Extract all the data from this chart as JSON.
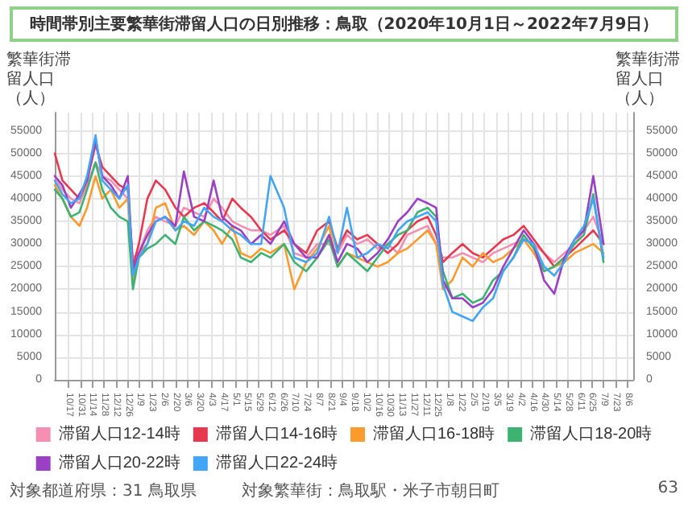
{
  "chart_data": {
    "type": "line",
    "title": "時間帯別主要繁華街滞留人口の日別推移：鳥取（2020年10月1日～2022年7月9日）",
    "ylabel": "繁華街滞留人口（人）",
    "y2label": "繁華街滞留人口（人）",
    "annotations": [
      "対象都道府県：31 鳥取県",
      "対象繁華街：鳥取駅・米子市朝日町",
      "63"
    ],
    "x": [
      "2020-10-01",
      "2020-10-10",
      "2020-10-20",
      "2020-10-30",
      "2020-11-08",
      "2020-11-18",
      "2020-11-26",
      "2020-12-06",
      "2020-12-16",
      "2020-12-26",
      "2021-01-01",
      "2021-01-08",
      "2021-01-18",
      "2021-01-28",
      "2021-02-08",
      "2021-02-20",
      "2021-03-02",
      "2021-03-14",
      "2021-03-26",
      "2021-04-06",
      "2021-04-16",
      "2021-04-28",
      "2021-05-08",
      "2021-05-20",
      "2021-06-01",
      "2021-06-12",
      "2021-06-28",
      "2021-07-10",
      "2021-07-24",
      "2021-08-06",
      "2021-08-20",
      "2021-08-30",
      "2021-09-10",
      "2021-09-22",
      "2021-10-04",
      "2021-10-16",
      "2021-10-28",
      "2021-11-09",
      "2021-11-20",
      "2021-12-02",
      "2021-12-14",
      "2021-12-24",
      "2022-01-01",
      "2022-01-12",
      "2022-01-24",
      "2022-02-05",
      "2022-02-17",
      "2022-03-01",
      "2022-03-13",
      "2022-03-25",
      "2022-04-06",
      "2022-04-18",
      "2022-04-30",
      "2022-05-12",
      "2022-05-24",
      "2022-06-05",
      "2022-06-16",
      "2022-06-27",
      "2022-07-09"
    ],
    "series": [
      {
        "name": "滞留人口12-14時",
        "color": "#f48fb1",
        "values": [
          45000,
          42000,
          40000,
          39000,
          43000,
          48000,
          45000,
          44000,
          42000,
          40000,
          27000,
          28000,
          33000,
          36000,
          35000,
          34000,
          38000,
          37000,
          36000,
          40000,
          38000,
          35000,
          34000,
          33000,
          33000,
          32000,
          34000,
          28000,
          27000,
          30000,
          30000,
          28000,
          32000,
          30000,
          31000,
          29000,
          30000,
          28000,
          32000,
          33000,
          34000,
          30000,
          27000,
          27000,
          28000,
          27000,
          26000,
          28000,
          29000,
          30000,
          31000,
          30000,
          28000,
          26000,
          28000,
          30000,
          33000,
          36000,
          30000
        ]
      },
      {
        "name": "滞留人口14-16時",
        "color": "#e8384f",
        "values": [
          50000,
          44000,
          42000,
          40000,
          44000,
          52000,
          47000,
          45000,
          43000,
          42000,
          25000,
          30000,
          40000,
          44000,
          42000,
          38000,
          36000,
          38000,
          39000,
          37000,
          35000,
          40000,
          38000,
          36000,
          33000,
          31000,
          33000,
          30000,
          28000,
          33000,
          35000,
          29000,
          33000,
          31000,
          32000,
          30000,
          28000,
          30000,
          33000,
          35000,
          36000,
          32000,
          26000,
          28000,
          30000,
          28000,
          27000,
          29000,
          31000,
          32000,
          34000,
          31000,
          28000,
          25000,
          27000,
          29000,
          31000,
          33000,
          30000
        ]
      },
      {
        "name": "滞留人口16-18時",
        "color": "#fd9a2e",
        "values": [
          43000,
          40000,
          36000,
          34000,
          38000,
          45000,
          40000,
          42000,
          38000,
          40000,
          22000,
          28000,
          30000,
          38000,
          39000,
          33000,
          34000,
          32000,
          35000,
          33000,
          30000,
          34000,
          28000,
          27000,
          29000,
          28000,
          30000,
          20000,
          26000,
          29000,
          34000,
          25000,
          28000,
          27000,
          26000,
          25000,
          26000,
          28000,
          29000,
          31000,
          33000,
          30000,
          20000,
          22000,
          27000,
          25000,
          28000,
          26000,
          27000,
          29000,
          31000,
          28000,
          24000,
          25000,
          26000,
          28000,
          29000,
          30000,
          28000
        ]
      },
      {
        "name": "滞留人口18-20時",
        "color": "#3cb371",
        "values": [
          42000,
          40000,
          36000,
          37000,
          42000,
          48000,
          42000,
          38000,
          36000,
          35000,
          20000,
          27000,
          29000,
          30000,
          32000,
          30000,
          36000,
          33000,
          35000,
          34000,
          33000,
          31000,
          27000,
          26000,
          28000,
          27000,
          30000,
          26000,
          24000,
          27000,
          31000,
          25000,
          28000,
          26000,
          24000,
          27000,
          30000,
          32000,
          33000,
          37000,
          38000,
          36000,
          24000,
          18000,
          19000,
          17000,
          18000,
          22000,
          24000,
          27000,
          32000,
          29000,
          24000,
          25000,
          27000,
          30000,
          32000,
          41000,
          26000
        ]
      },
      {
        "name": "滞留人口20-22時",
        "color": "#9b3fc4",
        "values": [
          45000,
          43000,
          38000,
          41000,
          44000,
          53000,
          45000,
          43000,
          40000,
          45000,
          24000,
          28000,
          32000,
          35000,
          36000,
          34000,
          46000,
          36000,
          35000,
          44000,
          36000,
          34000,
          33000,
          30000,
          32000,
          30000,
          35000,
          30000,
          27000,
          27000,
          32000,
          26000,
          30000,
          29000,
          26000,
          28000,
          31000,
          35000,
          37000,
          40000,
          39000,
          38000,
          22000,
          18000,
          18000,
          16000,
          17000,
          20000,
          25000,
          29000,
          33000,
          30000,
          22000,
          19000,
          27000,
          31000,
          33000,
          45000,
          30000
        ]
      },
      {
        "name": "滞留人口22-24時",
        "color": "#42a5f5",
        "values": [
          44000,
          41000,
          39000,
          40000,
          45000,
          54000,
          44000,
          42000,
          40000,
          43000,
          23000,
          27000,
          30000,
          35000,
          36000,
          33000,
          35000,
          34000,
          38000,
          36000,
          35000,
          33000,
          32000,
          30000,
          30000,
          45000,
          38000,
          27000,
          26000,
          28000,
          36000,
          28000,
          38000,
          27000,
          28000,
          30000,
          29000,
          33000,
          35000,
          36000,
          37000,
          35000,
          21000,
          15000,
          14000,
          13000,
          16000,
          18000,
          24000,
          27000,
          31000,
          30000,
          25000,
          23000,
          26000,
          31000,
          34000,
          40000,
          27000
        ]
      }
    ],
    "xlim": [
      "2020-10-01",
      "2022-08-13"
    ],
    "xticks": [
      {
        "value": "2020-10-17",
        "label": "10/17"
      },
      {
        "value": "2020-10-31",
        "label": "10/31"
      },
      {
        "value": "2020-11-14",
        "label": "11/14"
      },
      {
        "value": "2020-11-28",
        "label": "11/28"
      },
      {
        "value": "2020-12-12",
        "label": "12/12"
      },
      {
        "value": "2020-12-26",
        "label": "12/26"
      },
      {
        "value": "2021-01-09",
        "label": "1/9"
      },
      {
        "value": "2021-01-23",
        "label": "1/23"
      },
      {
        "value": "2021-02-06",
        "label": "2/6"
      },
      {
        "value": "2021-02-20",
        "label": "2/20"
      },
      {
        "value": "2021-03-06",
        "label": "3/6"
      },
      {
        "value": "2021-03-20",
        "label": "3/20"
      },
      {
        "value": "2021-04-03",
        "label": "4/3"
      },
      {
        "value": "2021-04-17",
        "label": "4/17"
      },
      {
        "value": "2021-05-01",
        "label": "5/1"
      },
      {
        "value": "2021-05-15",
        "label": "5/15"
      },
      {
        "value": "2021-05-29",
        "label": "5/29"
      },
      {
        "value": "2021-06-12",
        "label": "6/12"
      },
      {
        "value": "2021-06-26",
        "label": "6/26"
      },
      {
        "value": "2021-07-10",
        "label": "7/10"
      },
      {
        "value": "2021-07-24",
        "label": "7/24"
      },
      {
        "value": "2021-08-07",
        "label": "8/7"
      },
      {
        "value": "2021-08-21",
        "label": "8/21"
      },
      {
        "value": "2021-09-04",
        "label": "9/4"
      },
      {
        "value": "2021-09-18",
        "label": "9/18"
      },
      {
        "value": "2021-10-02",
        "label": "10/2"
      },
      {
        "value": "2021-10-16",
        "label": "10/16"
      },
      {
        "value": "2021-10-30",
        "label": "10/30"
      },
      {
        "value": "2021-11-13",
        "label": "11/13"
      },
      {
        "value": "2021-11-27",
        "label": "11/27"
      },
      {
        "value": "2021-12-11",
        "label": "12/11"
      },
      {
        "value": "2021-12-25",
        "label": "12/25"
      },
      {
        "value": "2022-01-08",
        "label": "1/8"
      },
      {
        "value": "2022-01-22",
        "label": "1/22"
      },
      {
        "value": "2022-02-05",
        "label": "2/5"
      },
      {
        "value": "2022-02-19",
        "label": "2/19"
      },
      {
        "value": "2022-03-05",
        "label": "3/5"
      },
      {
        "value": "2022-03-19",
        "label": "3/19"
      },
      {
        "value": "2022-04-02",
        "label": "4/2"
      },
      {
        "value": "2022-04-16",
        "label": "4/16"
      },
      {
        "value": "2022-04-30",
        "label": "4/30"
      },
      {
        "value": "2022-05-14",
        "label": "5/14"
      },
      {
        "value": "2022-05-28",
        "label": "5/28"
      },
      {
        "value": "2022-06-11",
        "label": "6/11"
      },
      {
        "value": "2022-06-25",
        "label": "6/25"
      },
      {
        "value": "2022-07-09",
        "label": "7/9"
      },
      {
        "value": "2022-07-23",
        "label": "7/23"
      },
      {
        "value": "2022-08-06",
        "label": "8/6"
      }
    ],
    "ylim": [
      0,
      59000
    ],
    "yticks": [
      0,
      5000,
      10000,
      15000,
      20000,
      25000,
      30000,
      35000,
      40000,
      45000,
      50000,
      55000
    ],
    "y2lim": [
      0,
      59000
    ],
    "y2ticks": [
      0,
      5000,
      10000,
      15000,
      20000,
      25000,
      30000,
      35000,
      40000,
      45000,
      50000,
      55000
    ],
    "grid": true,
    "legend": "bottom",
    "marker": "none",
    "line_style": "solid"
  }
}
